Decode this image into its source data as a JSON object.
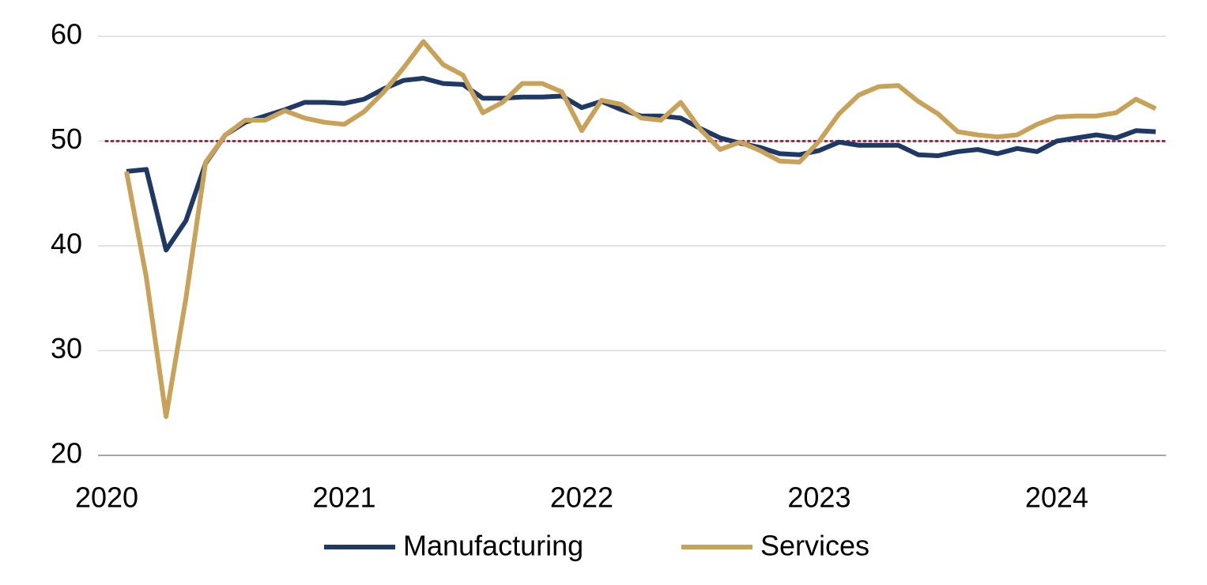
{
  "chart_data": {
    "type": "line",
    "x": [
      "2020-02",
      "2020-03",
      "2020-04",
      "2020-05",
      "2020-06",
      "2020-07",
      "2020-08",
      "2020-09",
      "2020-10",
      "2020-11",
      "2020-12",
      "2021-01",
      "2021-02",
      "2021-03",
      "2021-04",
      "2021-05",
      "2021-06",
      "2021-07",
      "2021-08",
      "2021-09",
      "2021-10",
      "2021-11",
      "2021-12",
      "2022-01",
      "2022-02",
      "2022-03",
      "2022-04",
      "2022-05",
      "2022-06",
      "2022-07",
      "2022-08",
      "2022-09",
      "2022-10",
      "2022-11",
      "2022-12",
      "2023-01",
      "2023-02",
      "2023-03",
      "2023-04",
      "2023-05",
      "2023-06",
      "2023-07",
      "2023-08",
      "2023-09",
      "2023-10",
      "2023-11",
      "2023-12",
      "2024-01",
      "2024-02",
      "2024-03",
      "2024-04",
      "2024-05",
      "2024-06"
    ],
    "series": [
      {
        "name": "Manufacturing",
        "color": "#1f3864",
        "values": [
          47.1,
          47.3,
          39.6,
          42.4,
          47.9,
          50.6,
          51.8,
          52.4,
          53.0,
          53.7,
          53.7,
          53.6,
          54.0,
          55.0,
          55.8,
          56.0,
          55.5,
          55.4,
          54.1,
          54.1,
          54.2,
          54.2,
          54.3,
          53.2,
          53.8,
          53.0,
          52.4,
          52.4,
          52.2,
          51.2,
          50.3,
          49.8,
          49.4,
          48.8,
          48.7,
          49.1,
          49.9,
          49.6,
          49.6,
          49.6,
          48.7,
          48.6,
          49.0,
          49.2,
          48.8,
          49.3,
          49.0,
          50.0,
          50.3,
          50.6,
          50.3,
          51.0,
          50.9
        ]
      },
      {
        "name": "Services",
        "color": "#c9a25a",
        "values": [
          47.1,
          37.0,
          23.7,
          35.0,
          48.0,
          50.6,
          52.0,
          52.0,
          52.9,
          52.2,
          51.8,
          51.6,
          52.8,
          54.7,
          57.0,
          59.5,
          57.3,
          56.3,
          52.7,
          53.7,
          55.5,
          55.5,
          54.7,
          51.0,
          53.9,
          53.5,
          52.2,
          52.0,
          53.7,
          51.1,
          49.2,
          49.9,
          49.1,
          48.1,
          48.0,
          50.0,
          52.6,
          54.4,
          55.2,
          55.3,
          53.8,
          52.6,
          50.9,
          50.6,
          50.4,
          50.6,
          51.6,
          52.3,
          52.4,
          52.4,
          52.7,
          54.0,
          53.1
        ]
      }
    ],
    "ylim": [
      20,
      60
    ],
    "yticks": [
      20,
      30,
      40,
      50,
      60
    ],
    "xlim": [
      "2020-01",
      "2024-07"
    ],
    "xticks": [
      "2020",
      "2021",
      "2022",
      "2023",
      "2024"
    ],
    "reference_line": {
      "value": 50,
      "color": "#9b2a4a"
    },
    "grid": true,
    "legend": "bottom"
  }
}
